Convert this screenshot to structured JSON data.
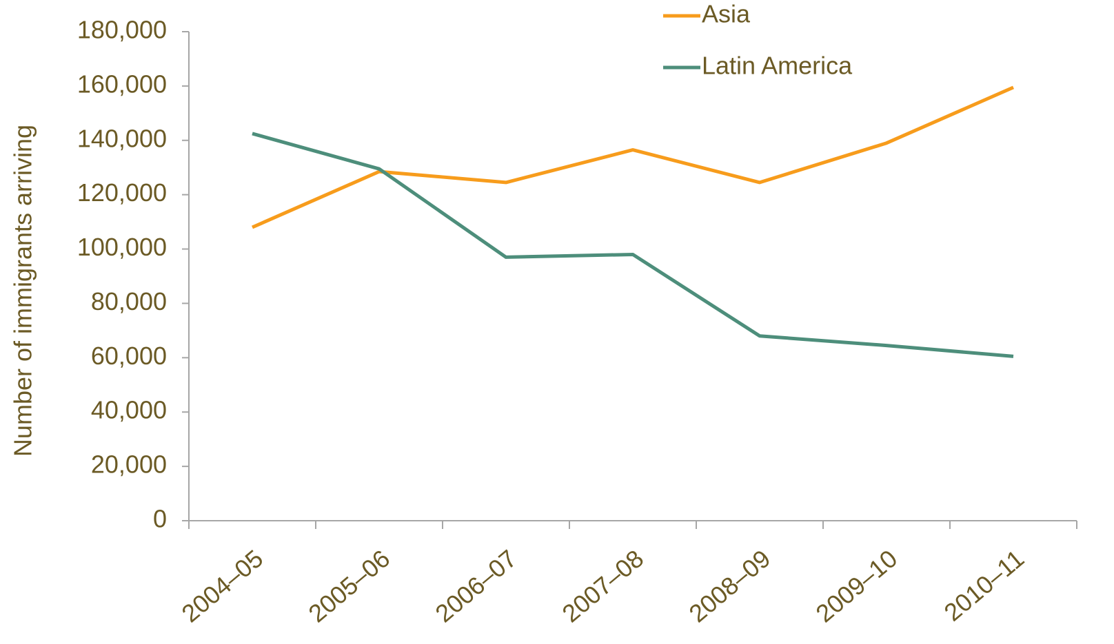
{
  "chart_data": {
    "type": "line",
    "y_label": "Number of immigrants arriving",
    "categories": [
      "2004–05",
      "2005–06",
      "2006–07",
      "2007–08",
      "2008–09",
      "2009–10",
      "2010–11"
    ],
    "series": [
      {
        "name": "Asia",
        "color": "#f79c1c",
        "values": [
          108000,
          128500,
          124500,
          136500,
          124500,
          139000,
          159500
        ]
      },
      {
        "name": "Latin America",
        "color": "#4d8e7b",
        "values": [
          142500,
          129500,
          97000,
          98000,
          68000,
          64500,
          60500
        ]
      }
    ],
    "ylim": [
      0,
      180000
    ],
    "yticks": [
      0,
      {
        "value": 20000,
        "label": "20,000"
      },
      {
        "value": 40000,
        "label": "40,000"
      },
      {
        "value": 60000,
        "label": "60,000"
      },
      {
        "value": 80000,
        "label": "80,000"
      },
      {
        "value": 100000,
        "label": "100,000"
      },
      {
        "value": 120000,
        "label": "120,000"
      },
      {
        "value": 140000,
        "label": "140,000"
      },
      {
        "value": 160000,
        "label": "160,000"
      },
      {
        "value": 180000,
        "label": "180,000"
      }
    ],
    "legend": "top-right"
  }
}
